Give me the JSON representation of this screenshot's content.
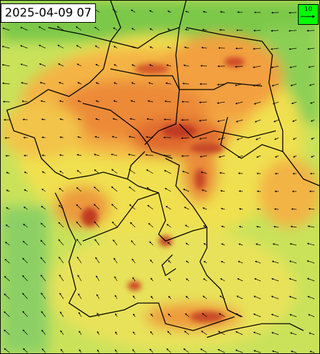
{
  "header": {
    "timestamp": "2025-04-09 07"
  },
  "legend": {
    "label": "10"
  }
}
